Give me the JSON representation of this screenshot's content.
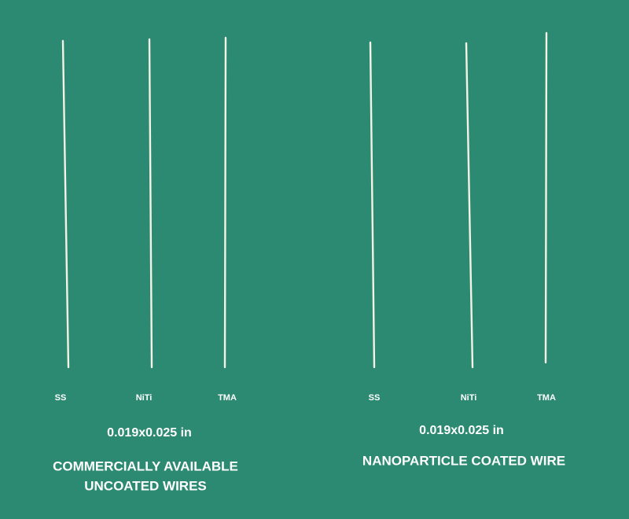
{
  "panels": [
    {
      "wires": [
        "SS",
        "NiTi",
        "TMA"
      ],
      "size": "0.019x0.025 in",
      "caption": [
        "COMMERCIALLY AVAILABLE",
        "UNCOATED WIRES"
      ]
    },
    {
      "wires": [
        "SS",
        "NiTi",
        "TMA"
      ],
      "size": "0.019x0.025 in",
      "caption": [
        "NANOPARTICLE COATED WIRE"
      ]
    }
  ]
}
